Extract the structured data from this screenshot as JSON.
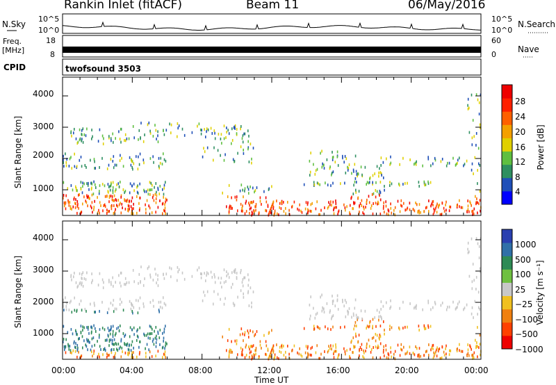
{
  "header": {
    "station": "Rankin Inlet (fitACF)",
    "beam": "Beam 11",
    "date": "06/May/2016"
  },
  "top_panels": {
    "nsky_label": "N.Sky",
    "nsky_ticks": [
      "10^5",
      "10^0"
    ],
    "nsearch_label": "N.Search",
    "nsearch_ticks": [
      "10^5",
      "10^0"
    ],
    "freq_label_1": "Freq.",
    "freq_label_2": "[MHz]",
    "freq_ticks": [
      "18",
      "8"
    ],
    "nave_label": "Nave",
    "nave_ticks": [
      "60",
      "0"
    ],
    "cpid_label": "CPID",
    "cpid_value": "twofsound 3503"
  },
  "chart_data": [
    {
      "type": "heatmap",
      "quantity": "power",
      "ylabel": "Slant Range [km]",
      "y_ticks": [
        1000,
        2000,
        3000,
        4000
      ],
      "ylim": [
        180,
        4600
      ],
      "x_ticks": [
        "00:00",
        "04:00",
        "08:00",
        "12:00",
        "16:00",
        "20:00",
        "00:00"
      ],
      "xlim_hours": [
        0,
        24
      ],
      "colorbar_label": "Power [dB]",
      "colorbar_ticks": [
        "28",
        "24",
        "20",
        "16",
        "12",
        "8",
        "4"
      ],
      "colorbar_range": [
        0,
        30
      ],
      "colors": [
        "#0000ff",
        "#1f4fb8",
        "#2e8f60",
        "#5fbf40",
        "#e0d000",
        "#f4a000",
        "#ff6000",
        "#ff2000",
        "#ee0000"
      ]
    },
    {
      "type": "heatmap",
      "quantity": "velocity",
      "ylabel": "Slant Range [km]",
      "y_ticks": [
        1000,
        2000,
        3000,
        4000
      ],
      "ylim": [
        180,
        4600
      ],
      "x_ticks": [
        "00:00",
        "04:00",
        "08:00",
        "12:00",
        "16:00",
        "20:00",
        "00:00"
      ],
      "xlim_hours": [
        0,
        24
      ],
      "xlabel": "Time UT",
      "colorbar_label": "Velocity [m s⁻¹]",
      "colorbar_ticks": [
        "1000",
        "500",
        "100",
        "25",
        "−25",
        "−100",
        "−500",
        "−1000"
      ],
      "colors": [
        "#2a3fb0",
        "#3070a8",
        "#2e8a55",
        "#6fc040",
        "#c8c8c8",
        "#f0c020",
        "#f08010",
        "#ff4000",
        "#ee0000"
      ]
    }
  ]
}
